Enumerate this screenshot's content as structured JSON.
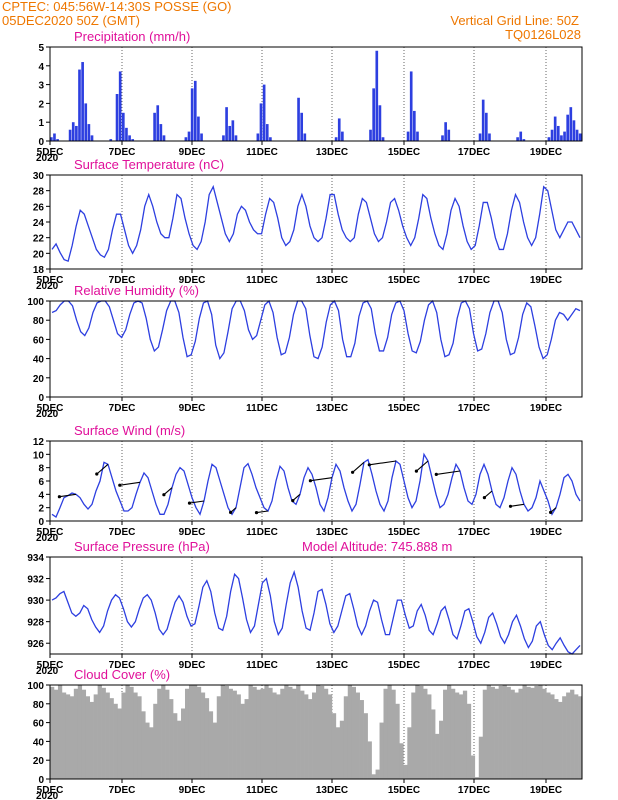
{
  "header": {
    "line1": "CPTEC:   045:56W-14:30S   POSSE (GO)",
    "line2": "05DEC2020 50Z (GMT)",
    "right1": "Vertical Grid Line: 50Z",
    "right2": "TQ0126L028"
  },
  "x_ticks": [
    "5DEC",
    "7DEC",
    "9DEC",
    "11DEC",
    "13DEC",
    "15DEC",
    "17DEC",
    "19DEC"
  ],
  "x_year_fragment": "2020",
  "colors": {
    "header": "#ee7700",
    "title": "#e0109a",
    "series": "#2d3fe0",
    "cloud": "#a9a9a9"
  },
  "chart_data": [
    {
      "type": "bar",
      "title": "Precipitation (mm/h)",
      "ylim": [
        0,
        5
      ],
      "yticks": [
        "0",
        "1",
        "2",
        "3",
        "4",
        "5"
      ],
      "x_start": "5DEC 00Z",
      "hours_per_value": 3,
      "values": [
        0.2,
        0.4,
        0.1,
        0.0,
        0.0,
        0.0,
        0.6,
        1.0,
        0.8,
        3.8,
        4.2,
        2.0,
        0.9,
        0.3,
        0.0,
        0.0,
        0.0,
        0.0,
        0.0,
        0.1,
        0.0,
        2.5,
        3.7,
        1.5,
        0.7,
        0.3,
        0.1,
        0.0,
        0.0,
        0.0,
        0.0,
        0.0,
        0.0,
        1.5,
        1.9,
        0.9,
        0.3,
        0.0,
        0.0,
        0.0,
        0.0,
        0.0,
        0.0,
        0.2,
        0.5,
        2.8,
        3.2,
        1.3,
        0.4,
        0.0,
        0.0,
        0.0,
        0.0,
        0.0,
        0.0,
        0.3,
        1.8,
        0.8,
        1.1,
        0.3,
        0.0,
        0.0,
        0.0,
        0.0,
        0.0,
        0.0,
        0.4,
        2.0,
        3.0,
        0.9,
        0.2,
        0.0,
        0.0,
        0.0,
        0.0,
        0.0,
        0.0,
        0.0,
        0.0,
        2.3,
        1.5,
        0.4,
        0.0,
        0.0,
        0.0,
        0.0,
        0.0,
        0.0,
        0.0,
        0.0,
        0.0,
        0.2,
        1.2,
        0.5,
        0.0,
        0.0,
        0.0,
        0.0,
        0.0,
        0.0,
        0.0,
        0.0,
        0.6,
        2.8,
        4.8,
        1.9,
        0.2,
        0.0,
        0.0,
        0.0,
        0.0,
        0.0,
        0.0,
        0.0,
        0.5,
        3.7,
        1.6,
        0.5,
        0.0,
        0.0,
        0.0,
        0.0,
        0.0,
        0.0,
        0.0,
        0.3,
        1.0,
        0.6,
        0.0,
        0.0,
        0.0,
        0.0,
        0.0,
        0.0,
        0.0,
        0.0,
        0.0,
        0.4,
        2.2,
        1.5,
        0.4,
        0.0,
        0.0,
        0.0,
        0.0,
        0.0,
        0.0,
        0.0,
        0.0,
        0.2,
        0.5,
        0.1,
        0.0,
        0.0,
        0.0,
        0.0,
        0.0,
        0.0,
        0.0,
        0.2,
        0.6,
        1.3,
        0.8,
        0.3,
        0.5,
        1.4,
        1.8,
        1.1,
        0.6,
        0.4
      ]
    },
    {
      "type": "line",
      "title": "Surface Temperature (nC)",
      "ylim": [
        18,
        30
      ],
      "yticks": [
        "18",
        "20",
        "22",
        "24",
        "26",
        "28",
        "30"
      ],
      "x_start": "5DEC 00Z",
      "hours_per_value": 3,
      "values": [
        20.5,
        21.2,
        20.1,
        19.2,
        19.0,
        21.0,
        23.5,
        25.5,
        25.0,
        23.5,
        22.0,
        20.5,
        19.8,
        19.5,
        20.5,
        23.0,
        25.0,
        25.0,
        23.0,
        21.0,
        20.0,
        21.0,
        23.0,
        26.0,
        27.5,
        26.0,
        24.0,
        22.5,
        22.0,
        22.0,
        24.5,
        27.5,
        27.0,
        24.5,
        22.5,
        21.0,
        20.5,
        21.5,
        24.0,
        27.5,
        28.5,
        26.5,
        24.5,
        22.5,
        21.5,
        22.5,
        25.0,
        26.0,
        25.5,
        24.0,
        23.0,
        22.5,
        22.5,
        25.0,
        27.0,
        26.5,
        24.5,
        22.0,
        21.0,
        21.5,
        23.0,
        26.0,
        27.5,
        26.0,
        23.5,
        22.0,
        21.5,
        22.0,
        24.5,
        27.5,
        27.5,
        25.0,
        23.0,
        22.0,
        21.5,
        22.0,
        25.0,
        27.0,
        26.5,
        24.5,
        22.5,
        21.5,
        22.0,
        24.0,
        26.5,
        27.0,
        25.5,
        23.5,
        22.0,
        21.0,
        22.0,
        24.5,
        27.5,
        27.0,
        24.5,
        22.5,
        21.0,
        20.5,
        22.5,
        25.5,
        27.0,
        26.0,
        23.5,
        21.5,
        20.5,
        21.0,
        23.5,
        26.5,
        26.5,
        24.5,
        22.0,
        20.5,
        20.5,
        22.5,
        25.5,
        27.5,
        26.5,
        24.0,
        22.0,
        21.0,
        22.0,
        25.0,
        28.5,
        28.0,
        25.5,
        23.0,
        22.0,
        23.0,
        24.0,
        24.0,
        23.0,
        22.0
      ]
    },
    {
      "type": "line",
      "title": "Relative Humidity (%)",
      "ylim": [
        0,
        100
      ],
      "yticks": [
        "0",
        "20",
        "40",
        "60",
        "80",
        "100"
      ],
      "x_start": "5DEC 00Z",
      "hours_per_value": 3,
      "values": [
        88,
        90,
        96,
        100,
        100,
        95,
        80,
        68,
        64,
        72,
        88,
        98,
        100,
        100,
        94,
        80,
        66,
        62,
        70,
        86,
        98,
        100,
        98,
        82,
        60,
        48,
        52,
        70,
        90,
        100,
        100,
        88,
        62,
        42,
        44,
        58,
        82,
        98,
        100,
        86,
        54,
        40,
        46,
        68,
        92,
        100,
        100,
        90,
        70,
        60,
        64,
        80,
        96,
        100,
        88,
        62,
        44,
        46,
        62,
        86,
        100,
        100,
        92,
        64,
        42,
        40,
        52,
        78,
        96,
        100,
        90,
        60,
        42,
        42,
        56,
        84,
        98,
        100,
        92,
        66,
        48,
        48,
        62,
        86,
        98,
        100,
        90,
        66,
        48,
        46,
        58,
        80,
        96,
        100,
        88,
        60,
        42,
        44,
        56,
        82,
        98,
        100,
        92,
        66,
        48,
        50,
        66,
        88,
        100,
        100,
        88,
        60,
        44,
        46,
        62,
        86,
        98,
        94,
        74,
        52,
        40,
        44,
        60,
        80,
        88,
        86,
        80,
        86,
        92,
        90
      ]
    },
    {
      "type": "line",
      "title": "Surface Wind (m/s)",
      "ylim": [
        0,
        12
      ],
      "yticks": [
        "0",
        "2",
        "4",
        "6",
        "8",
        "10",
        "12"
      ],
      "x_start": "5DEC 00Z",
      "hours_per_value": 3,
      "values": [
        1.0,
        0.6,
        2.0,
        3.5,
        3.8,
        4.2,
        4.0,
        3.5,
        2.5,
        1.8,
        2.5,
        4.5,
        6.0,
        8.8,
        8.5,
        6.5,
        4.5,
        3.0,
        1.5,
        1.5,
        2.0,
        4.0,
        5.8,
        7.2,
        6.5,
        4.5,
        2.5,
        1.0,
        1.0,
        2.5,
        5.0,
        7.0,
        8.0,
        7.5,
        5.5,
        3.5,
        2.0,
        1.0,
        3.0,
        6.0,
        8.5,
        8.0,
        6.0,
        4.0,
        2.0,
        1.0,
        2.0,
        5.0,
        8.0,
        8.6,
        7.0,
        5.0,
        3.5,
        2.0,
        1.5,
        3.0,
        6.0,
        8.2,
        7.5,
        5.0,
        3.0,
        2.5,
        4.0,
        6.5,
        8.0,
        7.0,
        5.0,
        2.5,
        1.5,
        3.5,
        6.5,
        8.5,
        7.5,
        5.0,
        3.0,
        1.5,
        2.5,
        5.5,
        8.8,
        9.2,
        7.0,
        4.5,
        2.5,
        1.5,
        3.0,
        6.5,
        9.0,
        8.5,
        6.0,
        3.5,
        2.0,
        3.0,
        6.0,
        10.0,
        9.0,
        6.5,
        4.0,
        2.0,
        2.5,
        4.0,
        6.5,
        8.5,
        7.5,
        5.0,
        3.0,
        2.5,
        4.0,
        7.0,
        8.5,
        7.0,
        4.5,
        2.5,
        2.0,
        3.5,
        6.0,
        8.0,
        7.0,
        4.5,
        2.5,
        1.5,
        2.0,
        3.5,
        6.0,
        4.5,
        3.0,
        1.0,
        2.0,
        4.0,
        6.5,
        7.0,
        6.0,
        4.0,
        3.0
      ]
    },
    {
      "type": "line",
      "title": "Surface Pressure (hPa)",
      "annotation": "Model Altitude: 745.888 m",
      "ylim": [
        925,
        934
      ],
      "yticks": [
        "926",
        "928",
        "930",
        "932",
        "934"
      ],
      "x_start": "5DEC 00Z",
      "hours_per_value": 3,
      "values": [
        930.0,
        930.2,
        930.6,
        930.8,
        929.8,
        928.8,
        928.5,
        928.8,
        929.5,
        929.2,
        928.2,
        927.5,
        927.0,
        927.6,
        929.0,
        930.0,
        930.5,
        930.2,
        929.2,
        928.0,
        927.5,
        928.0,
        929.2,
        930.2,
        930.5,
        930.0,
        928.8,
        927.3,
        926.8,
        927.3,
        928.6,
        929.8,
        930.4,
        929.8,
        928.5,
        927.6,
        927.8,
        929.4,
        931.2,
        931.8,
        930.8,
        928.8,
        927.4,
        927.2,
        928.5,
        930.8,
        932.4,
        932.0,
        930.2,
        928.2,
        927.0,
        927.6,
        929.6,
        931.6,
        932.0,
        930.4,
        928.0,
        926.8,
        927.4,
        929.6,
        931.6,
        932.6,
        931.2,
        929.0,
        927.4,
        927.2,
        928.8,
        930.8,
        931.0,
        929.6,
        927.8,
        927.0,
        927.6,
        929.0,
        930.4,
        930.6,
        929.2,
        927.6,
        926.8,
        927.6,
        929.0,
        930.0,
        929.8,
        928.2,
        926.8,
        926.8,
        928.4,
        930.0,
        930.0,
        928.6,
        927.4,
        927.6,
        929.0,
        929.6,
        928.6,
        927.2,
        926.8,
        927.8,
        929.0,
        929.4,
        928.2,
        926.8,
        926.4,
        927.6,
        929.0,
        929.2,
        928.0,
        926.6,
        926.0,
        927.0,
        928.4,
        928.8,
        927.8,
        926.6,
        926.0,
        926.8,
        928.0,
        928.6,
        927.6,
        926.4,
        925.6,
        926.2,
        927.6,
        928.0,
        926.8,
        925.8,
        925.4,
        926.0,
        926.5,
        925.8,
        925.2,
        924.8,
        925.4,
        925.8
      ]
    },
    {
      "type": "bar",
      "title": "Cloud Cover (%)",
      "ylim": [
        0,
        100
      ],
      "yticks": [
        "0",
        "20",
        "40",
        "60",
        "80",
        "100"
      ],
      "x_start": "5DEC 00Z",
      "hours_per_value": 3,
      "values": [
        98,
        95,
        100,
        92,
        90,
        88,
        96,
        100,
        95,
        88,
        82,
        90,
        100,
        97,
        92,
        86,
        80,
        75,
        92,
        100,
        98,
        92,
        88,
        72,
        60,
        55,
        80,
        96,
        100,
        95,
        85,
        70,
        62,
        75,
        96,
        100,
        100,
        98,
        92,
        86,
        72,
        60,
        88,
        100,
        99,
        96,
        94,
        90,
        80,
        85,
        100,
        98,
        95,
        96,
        100,
        97,
        92,
        90,
        96,
        100,
        98,
        96,
        100,
        94,
        90,
        85,
        92,
        100,
        99,
        96,
        90,
        70,
        55,
        62,
        88,
        100,
        98,
        92,
        84,
        70,
        40,
        5,
        10,
        60,
        96,
        100,
        95,
        80,
        38,
        15,
        55,
        92,
        100,
        99,
        96,
        90,
        74,
        48,
        62,
        95,
        100,
        96,
        92,
        90,
        94,
        80,
        25,
        2,
        45,
        95,
        100,
        98,
        96,
        99,
        100,
        98,
        95,
        92,
        96,
        100,
        98,
        97,
        99,
        100,
        96,
        92,
        90,
        85,
        82,
        88,
        92,
        95,
        90,
        88
      ]
    }
  ]
}
